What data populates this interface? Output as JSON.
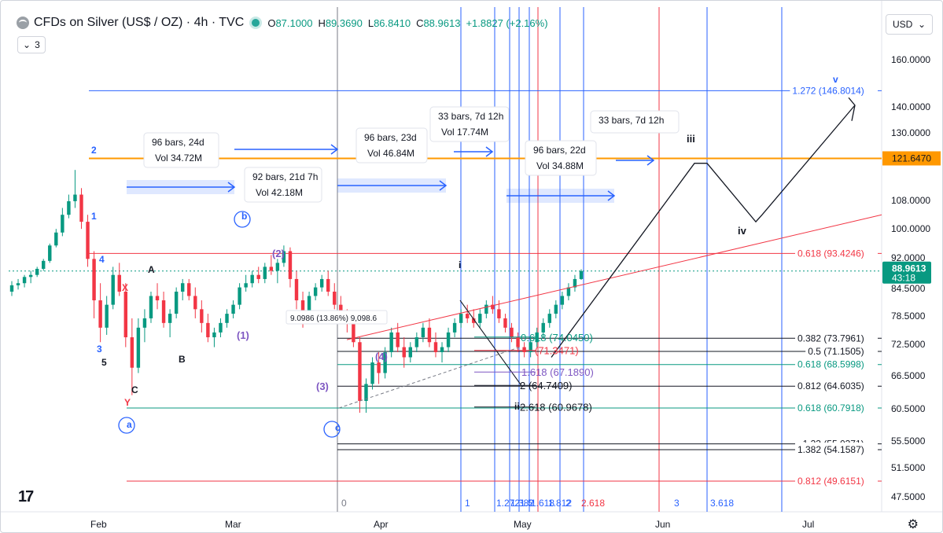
{
  "header": {
    "title": "CFDs on Silver (US$ / OZ) · 4h · TVC",
    "ohlc": [
      {
        "key": "O",
        "value": "87.1000"
      },
      {
        "key": "H",
        "value": "89.3690"
      },
      {
        "key": "L",
        "value": "86.8410"
      },
      {
        "key": "C",
        "value": "88.9613"
      }
    ],
    "change": "+1.8827 (+2.16%)",
    "indicator_count": "3"
  },
  "currency": "USD",
  "colors": {
    "up": "#089981",
    "down": "#f23645",
    "blue": "#2962ff",
    "orange": "#ff9800",
    "red_fib": "#f23645",
    "green_fib": "#089981",
    "purple": "#7e57c2",
    "price_tag": "#089981"
  },
  "chart_data": {
    "type": "candlestick",
    "title": "CFDs on Silver (US$ / OZ) · 4h · TVC",
    "ylim": [
      45.5,
      175
    ],
    "y_scale": "log",
    "y_ticks": [
      "160.0000",
      "140.0000",
      "130.0000",
      "108.0000",
      "100.0000",
      "92.0000",
      "84.5000",
      "78.5000",
      "72.5000",
      "66.5000",
      "60.5000",
      "55.5000",
      "51.5000",
      "47.5000"
    ],
    "x_ticks": [
      "Feb",
      "Mar",
      "Apr",
      "May",
      "Jun",
      "Jul"
    ],
    "last_price": "88.9613",
    "countdown": "43:18",
    "price_line_value": 88.9613,
    "candles": [
      [
        84,
        86.5,
        83,
        85.5
      ],
      [
        85.5,
        87,
        84.5,
        86
      ],
      [
        86,
        88,
        85,
        87.5
      ],
      [
        87.5,
        89,
        86,
        88
      ],
      [
        88,
        90,
        87.5,
        89.5
      ],
      [
        89.5,
        92,
        89,
        91.5
      ],
      [
        91.5,
        96,
        91,
        95.5
      ],
      [
        95.5,
        100,
        95,
        99
      ],
      [
        99,
        106,
        98,
        104
      ],
      [
        104,
        110,
        103,
        108
      ],
      [
        108,
        117.8,
        106,
        110
      ],
      [
        110,
        112,
        100,
        102
      ],
      [
        102,
        104,
        90,
        92
      ],
      [
        92,
        94,
        78,
        82
      ],
      [
        82,
        86,
        73,
        76
      ],
      [
        76,
        83,
        74.5,
        81
      ],
      [
        81,
        90,
        80,
        88
      ],
      [
        88,
        91,
        83,
        84
      ],
      [
        84,
        86,
        72,
        74
      ],
      [
        74,
        78,
        63,
        68
      ],
      [
        68,
        78,
        67,
        76
      ],
      [
        76,
        80,
        73,
        78
      ],
      [
        78,
        84,
        77,
        83
      ],
      [
        83,
        86,
        80,
        82
      ],
      [
        82,
        84,
        76,
        77
      ],
      [
        77,
        80,
        74,
        79
      ],
      [
        79,
        85,
        78,
        84
      ],
      [
        84,
        87,
        82,
        86
      ],
      [
        86,
        87,
        82,
        83
      ],
      [
        83,
        85,
        78,
        80
      ],
      [
        80,
        82,
        75,
        77
      ],
      [
        77,
        79,
        73,
        74
      ],
      [
        74,
        76,
        72,
        75
      ],
      [
        75,
        78,
        74,
        77
      ],
      [
        77,
        80,
        76,
        79
      ],
      [
        79,
        82,
        78,
        81
      ],
      [
        81,
        86,
        80,
        85
      ],
      [
        85,
        88,
        84,
        86
      ],
      [
        86,
        89,
        85,
        88
      ],
      [
        88,
        90,
        86,
        87
      ],
      [
        87,
        91,
        86,
        90
      ],
      [
        90,
        93,
        88,
        89
      ],
      [
        89,
        92,
        86,
        91
      ],
      [
        91,
        95.5,
        90,
        94
      ],
      [
        94,
        95,
        85,
        87
      ],
      [
        87,
        89,
        80,
        82
      ],
      [
        82,
        84,
        76,
        79
      ],
      [
        79,
        84,
        78,
        83
      ],
      [
        83,
        86,
        82,
        85
      ],
      [
        85,
        88,
        84,
        87
      ],
      [
        87,
        89,
        83,
        84
      ],
      [
        84,
        86,
        80,
        81
      ],
      [
        81,
        83,
        77,
        78
      ],
      [
        78,
        80,
        75,
        77
      ],
      [
        77,
        79,
        72,
        73
      ],
      [
        73,
        74,
        60,
        62
      ],
      [
        62,
        66,
        60,
        65
      ],
      [
        65,
        70,
        64,
        69
      ],
      [
        69,
        71,
        65,
        67
      ],
      [
        67,
        72,
        66,
        71
      ],
      [
        71,
        76,
        70,
        75
      ],
      [
        75,
        77,
        71,
        72
      ],
      [
        72,
        74,
        68,
        70
      ],
      [
        70,
        73,
        69,
        72
      ],
      [
        72,
        75,
        71,
        74
      ],
      [
        74,
        77,
        73,
        76
      ],
      [
        76,
        78,
        72,
        73
      ],
      [
        73,
        75,
        70,
        71
      ],
      [
        71,
        73,
        69,
        72
      ],
      [
        72,
        76,
        71,
        75
      ],
      [
        75,
        78,
        74,
        77
      ],
      [
        77,
        80,
        76,
        79
      ],
      [
        79,
        81,
        77,
        78
      ],
      [
        78,
        80,
        76,
        77
      ],
      [
        77,
        80,
        76,
        79
      ],
      [
        79,
        82,
        78,
        81
      ],
      [
        81,
        83,
        79,
        80
      ],
      [
        80,
        82,
        77,
        78
      ],
      [
        78,
        79,
        75,
        76
      ],
      [
        76,
        77,
        73,
        74
      ],
      [
        74,
        75,
        71,
        72
      ],
      [
        72,
        73,
        70,
        71
      ],
      [
        71,
        74,
        70,
        73
      ],
      [
        73,
        76,
        72,
        75
      ],
      [
        75,
        78,
        74,
        77
      ],
      [
        77,
        80,
        76,
        79
      ],
      [
        79,
        82,
        78,
        81
      ],
      [
        81,
        84,
        80,
        83
      ],
      [
        83,
        86,
        82,
        85
      ],
      [
        85,
        88,
        84,
        87
      ],
      [
        87,
        89.4,
        86.8,
        88.96
      ]
    ],
    "horizontal_levels": [
      {
        "value": 121.647,
        "label": "121.6470",
        "color": "#ff9800"
      },
      {
        "value": 146.8014,
        "label": "1.272 (146.8014)",
        "color": "#2962ff"
      },
      {
        "value": 93.4246,
        "label": "0.618 (93.4246)",
        "color": "#f23645"
      },
      {
        "value": 73.7961,
        "label": "0.382 (73.7961)",
        "color": "#131722"
      },
      {
        "value": 71.1505,
        "label": "0.5 (71.1505)",
        "color": "#131722"
      },
      {
        "value": 68.5998,
        "label": "0.618 (68.5998)",
        "color": "#089981"
      },
      {
        "value": 64.6035,
        "label": "0.812 (64.6035)",
        "color": "#131722"
      },
      {
        "value": 60.7918,
        "label": "0.618 (60.7918)",
        "color": "#089981"
      },
      {
        "value": 55.0371,
        "label": "1.33 (55.0371)",
        "color": "#131722"
      },
      {
        "value": 54.1587,
        "label": "1.382 (54.1587)",
        "color": "#131722"
      },
      {
        "value": 49.6151,
        "label": "0.812 (49.6151)",
        "color": "#f23645"
      }
    ],
    "mid_fib_labels": [
      {
        "value": 74.045,
        "text": "0.618 (74.0450)",
        "color": "#089981"
      },
      {
        "value": 71.3471,
        "text": "(71.3471)",
        "color": "#f23645"
      },
      {
        "value": 67.189,
        "text": "1.618 (67.1890)",
        "color": "#7e57c2"
      },
      {
        "value": 64.7409,
        "text": "2 (64.7409)",
        "color": "#131722"
      },
      {
        "value": 60.9678,
        "text": "2.618 (60.9678)",
        "color": "#131722"
      }
    ],
    "time_cycle_labels": [
      "0",
      "1",
      "1.272",
      "1.382",
      "1.5",
      "1.618",
      "1.812",
      "2",
      "2.618",
      "3",
      "3.618"
    ],
    "measure_boxes": [
      {
        "line1": "96 bars, 24d",
        "line2": "Vol 34.72M"
      },
      {
        "line1": "92 bars, 21d 7h",
        "line2": "Vol 42.18M"
      },
      {
        "line1": "96 bars, 23d",
        "line2": "Vol 46.84M"
      },
      {
        "line1": "33 bars, 7d 12h",
        "line2": "Vol 17.74M"
      },
      {
        "line1": "96 bars, 22d",
        "line2": "Vol 34.88M"
      },
      {
        "line1": "33 bars, 7d 12h",
        "line2": ""
      }
    ],
    "wave_labels": [
      "2",
      "1",
      "3",
      "4",
      "5",
      "A",
      "B",
      "C",
      "a",
      "b",
      "c",
      "i",
      "ii",
      "iii",
      "iv",
      "v",
      "X",
      "Y",
      "(1)",
      "(2)",
      "(3)",
      "(4)"
    ],
    "annotation_text": "9.0986 (13.86%) 9,098.6"
  }
}
